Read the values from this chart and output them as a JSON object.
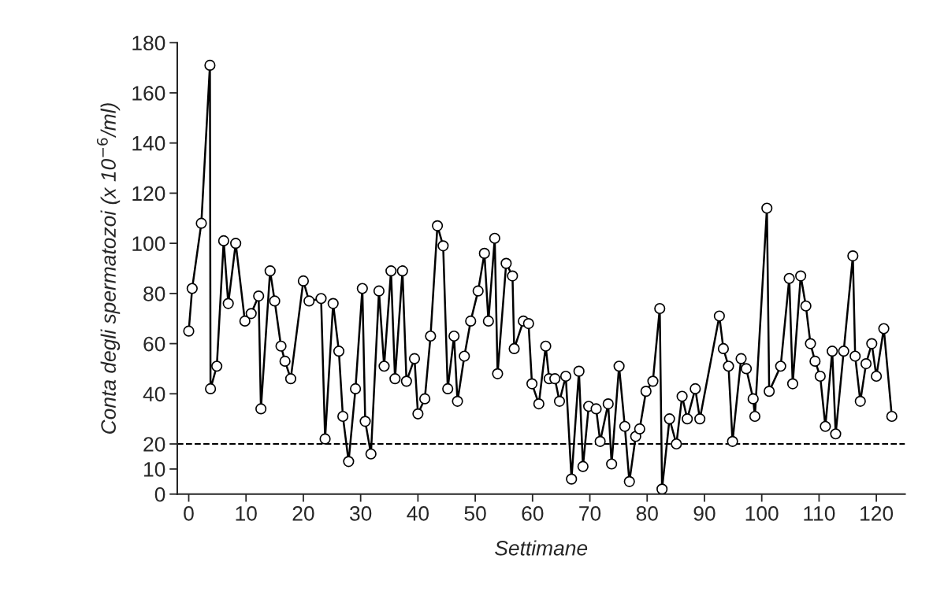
{
  "chart_data": {
    "type": "line",
    "xlabel": "Settimane",
    "ylabel": "Conta degli spermatozoi (x 10$^{−6}$/ml)",
    "xlim": [
      -2,
      125
    ],
    "ylim": [
      0,
      180
    ],
    "xticks": [
      0,
      10,
      20,
      30,
      40,
      50,
      60,
      70,
      80,
      90,
      100,
      110,
      120
    ],
    "yticks": [
      0,
      10,
      20,
      40,
      60,
      80,
      100,
      120,
      140,
      160,
      180
    ],
    "grid": false,
    "marker": "circle",
    "line_style": "solid",
    "ref_lines": [
      {
        "axis": "y",
        "value": 20,
        "color": "#000000",
        "line_style": "dashed"
      }
    ],
    "series": [
      {
        "color": "#000000",
        "x": [
          0,
          0.6,
          2.2,
          3.7,
          3.8,
          4.9,
          6.1,
          6.9,
          8.2,
          9.8,
          10.9,
          12.2,
          12.6,
          14.2,
          15,
          16.1,
          16.8,
          17.8,
          20,
          21,
          23.1,
          23.8,
          25.2,
          26.2,
          26.9,
          27.9,
          29.1,
          30.3,
          30.8,
          31.8,
          33.2,
          34.1,
          35.3,
          36,
          37.3,
          38,
          39.4,
          40,
          41.2,
          42.2,
          43.4,
          44.4,
          45.2,
          46.3,
          46.9,
          48.1,
          49.2,
          50.5,
          51.6,
          52.3,
          53.4,
          53.9,
          55.4,
          56.5,
          56.8,
          58.4,
          59.3,
          59.9,
          61.1,
          62.3,
          62.9,
          63.9,
          64.7,
          65.8,
          66.8,
          68.1,
          68.8,
          69.8,
          71.1,
          71.8,
          73.2,
          73.8,
          75.1,
          76.1,
          76.9,
          78,
          78.7,
          79.8,
          81,
          82.2,
          82.6,
          83.9,
          85.1,
          86.1,
          87,
          88.4,
          89.2,
          92.6,
          93.3,
          94.2,
          94.9,
          96.4,
          97.3,
          98.5,
          98.8,
          100.9,
          101.3,
          103.3,
          104.8,
          105.4,
          106.8,
          107.7,
          108.5,
          109.3,
          110.2,
          111.1,
          112.3,
          112.9,
          114.3,
          115.9,
          116.3,
          117.2,
          118.2,
          119.2,
          120,
          121.3,
          122.7
        ],
        "values": [
          65,
          82,
          108,
          171,
          42,
          51,
          101,
          76,
          100,
          69,
          72,
          79,
          34,
          89,
          77,
          59,
          53,
          46,
          85,
          77,
          78,
          22,
          76,
          57,
          31,
          13,
          42,
          82,
          29,
          16,
          81,
          51,
          89,
          46,
          89,
          45,
          54,
          32,
          38,
          63,
          107,
          99,
          42,
          63,
          37,
          55,
          69,
          81,
          96,
          69,
          102,
          48,
          92,
          87,
          58,
          69,
          68,
          44,
          36,
          59,
          46,
          46,
          37,
          47,
          6,
          49,
          11,
          35,
          34,
          21,
          36,
          12,
          51,
          27,
          5,
          23,
          26,
          41,
          45,
          74,
          2,
          30,
          20,
          39,
          30,
          42,
          30,
          71,
          58,
          51,
          21,
          54,
          50,
          38,
          31,
          114,
          41,
          51,
          86,
          44,
          87,
          75,
          60,
          53,
          47,
          27,
          57,
          24,
          57,
          95,
          55,
          37,
          52,
          60,
          47,
          66,
          31
        ]
      }
    ]
  }
}
